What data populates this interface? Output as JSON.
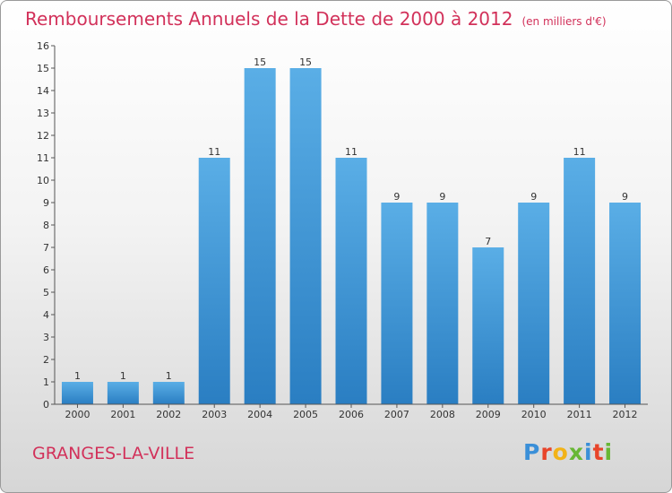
{
  "header": {
    "title": "Remboursements Annuels de la Dette de 2000 à 2012",
    "unit": "(en milliers d'€)"
  },
  "footer": {
    "commune": "GRANGES-LA-VILLE",
    "logo_letters": [
      "P",
      "r",
      "o",
      "x",
      "i",
      "t",
      "i"
    ]
  },
  "colors": {
    "title": "#d2315a",
    "bar_light": "#5aaee6",
    "bar_dark": "#2a7ec2",
    "logo": [
      "#3a8fd8",
      "#e8442a",
      "#f2b318",
      "#68b735",
      "#3a8fd8",
      "#e8442a",
      "#68b735"
    ]
  },
  "chart_data": {
    "type": "bar",
    "categories": [
      "2000",
      "2001",
      "2002",
      "2003",
      "2004",
      "2005",
      "2006",
      "2007",
      "2008",
      "2009",
      "2010",
      "2011",
      "2012"
    ],
    "values": [
      1,
      1,
      1,
      11,
      15,
      15,
      11,
      9,
      9,
      7,
      9,
      11,
      9
    ],
    "ylim": [
      0,
      16
    ],
    "yticks": [
      0,
      1,
      2,
      3,
      4,
      5,
      6,
      7,
      8,
      9,
      10,
      11,
      12,
      13,
      14,
      15,
      16
    ],
    "grid": false
  }
}
